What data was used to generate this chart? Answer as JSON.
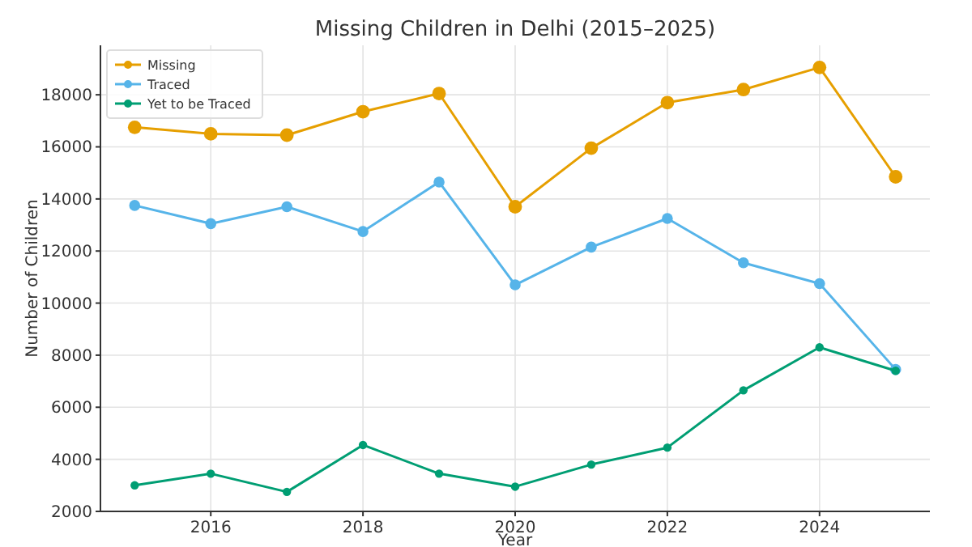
{
  "chart_data": {
    "type": "line",
    "title": "Missing Children in Delhi (2015–2025)",
    "xlabel": "Year",
    "ylabel": "Number of Children",
    "x": [
      2015,
      2016,
      2017,
      2018,
      2019,
      2020,
      2021,
      2022,
      2023,
      2024,
      2025
    ],
    "series": [
      {
        "name": "Missing",
        "color": "#e69f00",
        "values": [
          16750,
          16500,
          16450,
          17350,
          18050,
          13700,
          15950,
          17700,
          18200,
          19050,
          14850
        ]
      },
      {
        "name": "Traced",
        "color": "#56b4e9",
        "values": [
          13750,
          13050,
          13700,
          12750,
          14650,
          10700,
          12150,
          13250,
          11550,
          10750,
          7450
        ]
      },
      {
        "name": "Yet to be Traced",
        "color": "#009e73",
        "values": [
          3000,
          3450,
          2750,
          4550,
          3450,
          2950,
          3800,
          4450,
          6650,
          8300,
          7400
        ]
      }
    ],
    "xlim": [
      2014.55,
      2025.45
    ],
    "xticks": [
      2016,
      2018,
      2020,
      2022,
      2024
    ],
    "ylim": [
      2000,
      19900
    ],
    "yticks": [
      2000,
      4000,
      6000,
      8000,
      10000,
      12000,
      14000,
      16000,
      18000
    ],
    "grid": true,
    "legend": "top left",
    "marker": "circle",
    "line_style": "solid"
  }
}
